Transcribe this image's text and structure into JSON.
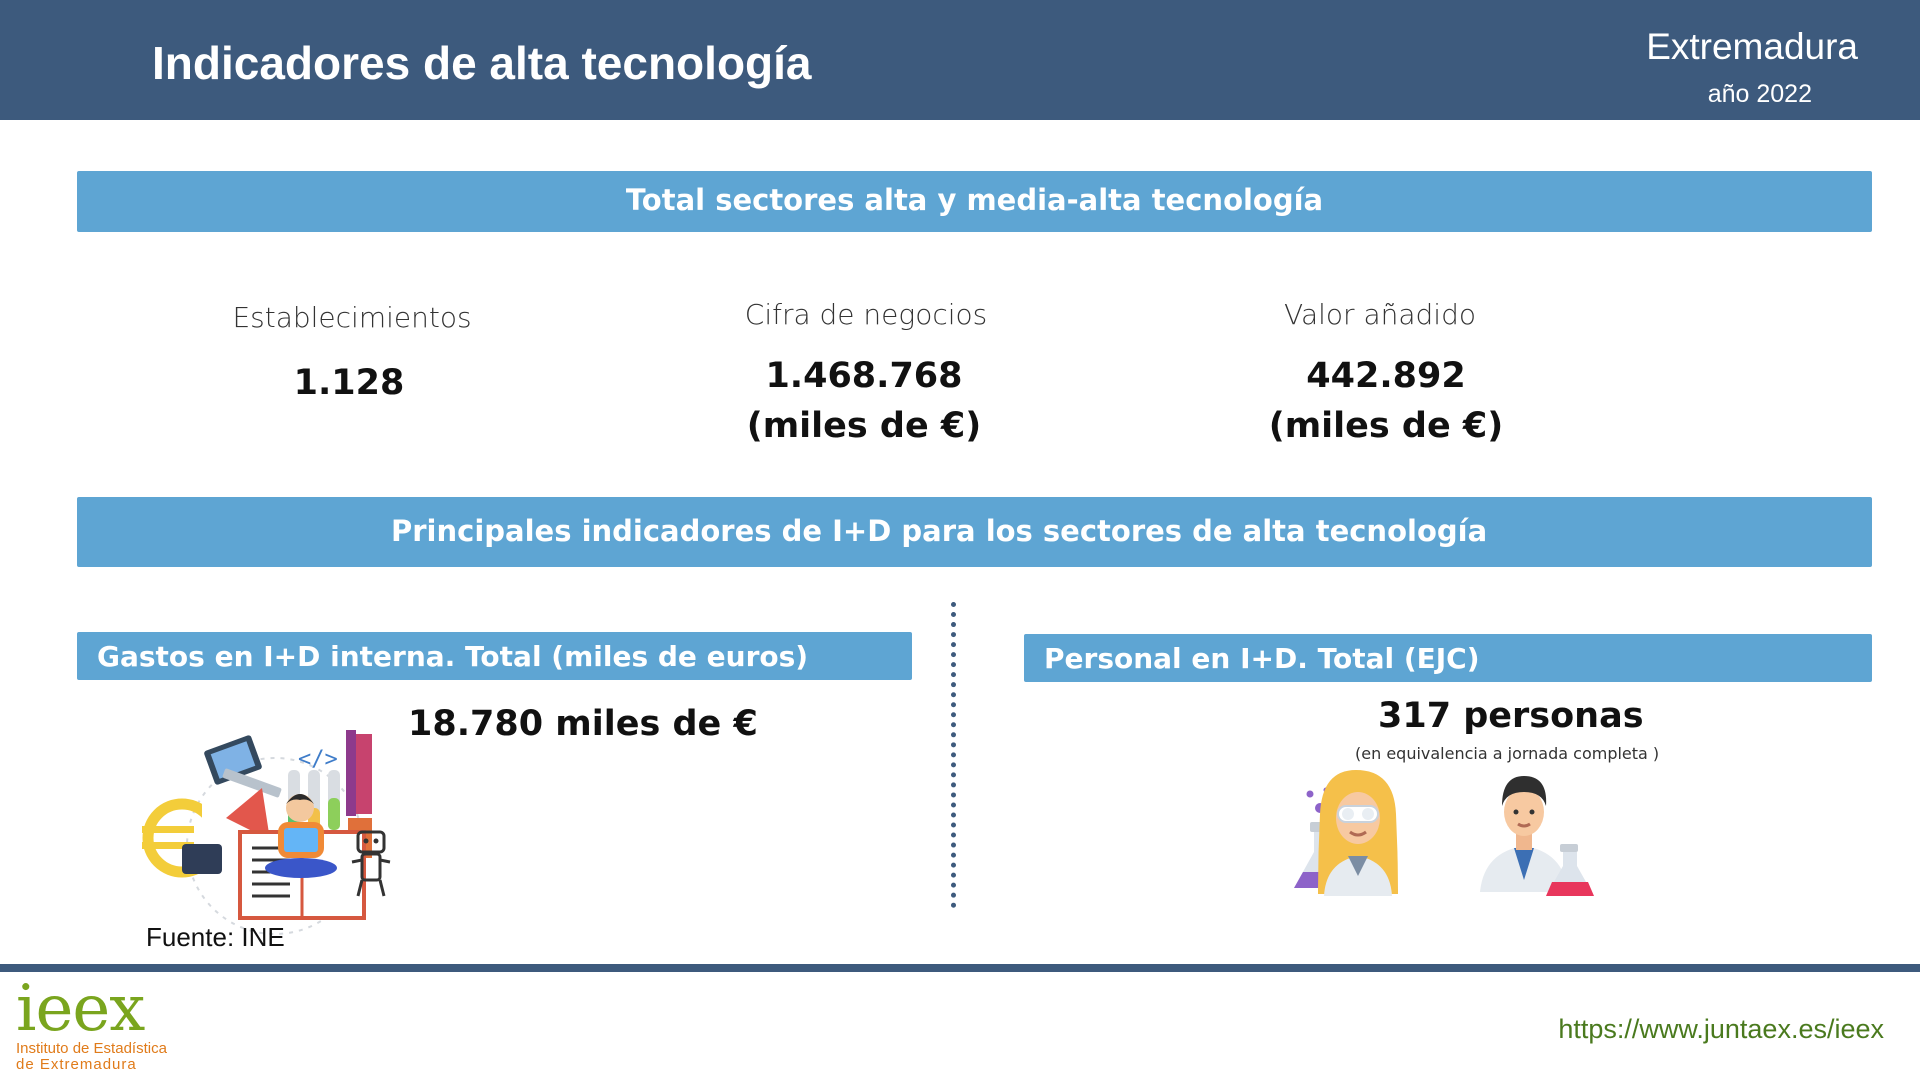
{
  "header": {
    "title": "Indicadores de alta tecnología",
    "region": "Extremadura",
    "year": "año 2022"
  },
  "section1": {
    "title": "Total sectores alta y media-alta tecnología",
    "metrics": [
      {
        "label": "Establecimientos",
        "value": "1.128",
        "unit": ""
      },
      {
        "label": "Cifra de negocios",
        "value": "1.468.768",
        "unit": "(miles de €)"
      },
      {
        "label": "Valor añadido",
        "value": "442.892",
        "unit": "(miles de €)"
      }
    ]
  },
  "section2": {
    "title": "Principales indicadores de I+D para los sectores de alta tecnología",
    "left": {
      "title": "Gastos en I+D interna. Total (miles de euros)",
      "value": "18.780 miles de €"
    },
    "right": {
      "title": "Personal en I+D. Total (EJC)",
      "value": "317 personas",
      "note": "(en equivalencia a jornada completa )"
    }
  },
  "source": "Fuente: INE",
  "footer": {
    "logo_text": "ieex",
    "logo_line1": "Instituto de Estadística",
    "logo_line2": "de Extremadura",
    "url": "https://www.juntaex.es/ieex"
  },
  "colors": {
    "header": "#3d5a7d",
    "band": "#5ea5d3",
    "logo_green": "#7aa51e",
    "logo_orange": "#e07b1a",
    "url_green": "#4a7a1e"
  },
  "icons": [
    "research-illustration",
    "scientist-woman-icon",
    "scientist-man-icon"
  ]
}
